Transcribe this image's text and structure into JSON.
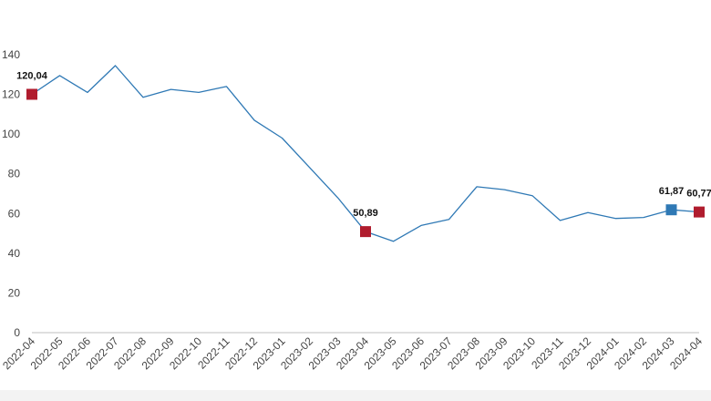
{
  "chart_data": {
    "type": "line",
    "title": "",
    "xlabel": "",
    "ylabel": "",
    "ylim": [
      0,
      140
    ],
    "yticks": [
      0,
      20,
      40,
      60,
      80,
      100,
      120,
      140
    ],
    "grid": false,
    "legend": "none",
    "categories": [
      "2022-04",
      "2022-05",
      "2022-06",
      "2022-07",
      "2022-08",
      "2022-09",
      "2022-10",
      "2022-11",
      "2022-12",
      "2023-01",
      "2023-02",
      "2023-03",
      "2023-04",
      "2023-05",
      "2023-06",
      "2023-07",
      "2023-08",
      "2023-09",
      "2023-10",
      "2023-11",
      "2023-12",
      "2024-01",
      "2024-02",
      "2024-03",
      "2024-04"
    ],
    "series": [
      {
        "values": [
          120.04,
          129.5,
          121.0,
          134.5,
          118.5,
          122.5,
          121.0,
          124.0,
          107.0,
          98.0,
          83.0,
          68.0,
          50.89,
          46.0,
          54.0,
          57.0,
          73.5,
          72.0,
          69.0,
          56.5,
          60.5,
          57.5,
          58.0,
          61.87,
          60.77
        ]
      }
    ],
    "markers": [
      {
        "index": 0,
        "label": "120,04",
        "color": "#b01c2e"
      },
      {
        "index": 12,
        "label": "50,89",
        "color": "#b01c2e"
      },
      {
        "index": 23,
        "label": "61,87",
        "color": "#2f79b5"
      },
      {
        "index": 24,
        "label": "60,77",
        "color": "#b01c2e"
      }
    ],
    "colors": {
      "line": "#2f79b5",
      "axis": "#bfbfbf"
    }
  }
}
